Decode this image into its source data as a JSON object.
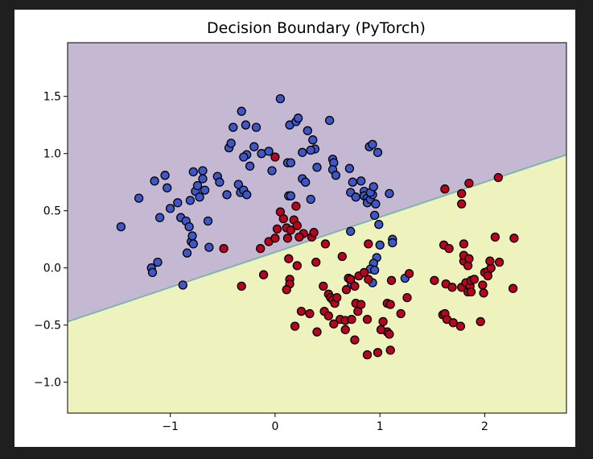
{
  "chart_data": {
    "type": "scatter",
    "title": "Decision Boundary (PyTorch)",
    "xlabel": "",
    "ylabel": "",
    "xlim": [
      -1.98,
      2.78
    ],
    "ylim": [
      -1.27,
      1.97
    ],
    "x_ticks": [
      -1,
      0,
      1,
      2
    ],
    "x_tick_labels": [
      "−1",
      "0",
      "1",
      "2"
    ],
    "y_ticks": [
      -1.0,
      -0.5,
      0.0,
      0.5,
      1.0,
      1.5
    ],
    "y_tick_labels": [
      "−1.0",
      "−0.5",
      "0.0",
      "0.5",
      "1.0",
      "1.5"
    ],
    "grid": false,
    "decision_boundary": {
      "points": [
        [
          -1.98,
          -0.47
        ],
        [
          2.78,
          0.99
        ]
      ],
      "upper_region_color": "#c5b8d3",
      "lower_region_color": "#eef3bd",
      "line_color": "#7fb7a6"
    },
    "colors": {
      "class_0": "#3f57c6",
      "class_1": "#b5051f",
      "marker_edge": "#000000"
    },
    "series": [
      {
        "class": 0,
        "points": [
          [
            -1.47,
            0.36
          ],
          [
            -1.3,
            0.61
          ],
          [
            -1.15,
            0.76
          ],
          [
            -1.05,
            0.81
          ],
          [
            -1.03,
            0.7
          ],
          [
            -1.0,
            0.52
          ],
          [
            -1.1,
            0.44
          ],
          [
            -1.18,
            0.0
          ],
          [
            -1.17,
            -0.04
          ],
          [
            -1.12,
            0.05
          ],
          [
            -0.93,
            0.57
          ],
          [
            -0.9,
            0.44
          ],
          [
            -0.85,
            0.41
          ],
          [
            -0.82,
            0.36
          ],
          [
            -0.84,
            0.13
          ],
          [
            -0.8,
            0.23
          ],
          [
            -0.78,
            0.21
          ],
          [
            -0.79,
            0.28
          ],
          [
            -0.81,
            0.59
          ],
          [
            -0.76,
            0.67
          ],
          [
            -0.74,
            0.72
          ],
          [
            -0.72,
            0.62
          ],
          [
            -0.69,
            0.85
          ],
          [
            -0.67,
            0.68
          ],
          [
            -0.64,
            0.41
          ],
          [
            -0.63,
            0.18
          ],
          [
            -0.55,
            0.8
          ],
          [
            -0.53,
            0.75
          ],
          [
            -0.46,
            0.64
          ],
          [
            -0.35,
            0.73
          ],
          [
            -0.33,
            0.66
          ],
          [
            -0.3,
            0.68
          ],
          [
            -0.27,
            0.64
          ],
          [
            -0.88,
            -0.15
          ],
          [
            -0.78,
            0.84
          ],
          [
            -0.69,
            0.78
          ],
          [
            -0.44,
            1.05
          ],
          [
            -0.42,
            1.09
          ],
          [
            -0.4,
            1.23
          ],
          [
            -0.32,
            1.37
          ],
          [
            -0.28,
            1.25
          ],
          [
            -0.18,
            1.23
          ],
          [
            -0.27,
            0.99
          ],
          [
            -0.3,
            0.97
          ],
          [
            -0.24,
            0.89
          ],
          [
            -0.2,
            1.06
          ],
          [
            -0.13,
            1.0
          ],
          [
            -0.06,
            1.02
          ],
          [
            -0.03,
            0.85
          ],
          [
            0.05,
            1.48
          ],
          [
            0.12,
            0.92
          ],
          [
            0.15,
            0.92
          ],
          [
            0.14,
            1.25
          ],
          [
            0.2,
            1.28
          ],
          [
            0.22,
            1.31
          ],
          [
            0.31,
            1.2
          ],
          [
            0.36,
            1.12
          ],
          [
            0.38,
            1.04
          ],
          [
            0.34,
            1.03
          ],
          [
            0.26,
            1.01
          ],
          [
            0.4,
            0.88
          ],
          [
            0.52,
            1.29
          ],
          [
            0.55,
            0.95
          ],
          [
            0.56,
            0.92
          ],
          [
            0.55,
            0.86
          ],
          [
            0.58,
            0.81
          ],
          [
            0.71,
            0.87
          ],
          [
            0.74,
            0.75
          ],
          [
            0.72,
            0.66
          ],
          [
            0.77,
            0.62
          ],
          [
            0.82,
            0.76
          ],
          [
            0.85,
            0.67
          ],
          [
            0.85,
            0.63
          ],
          [
            0.88,
            0.61
          ],
          [
            0.88,
            0.57
          ],
          [
            0.91,
            0.6
          ],
          [
            0.93,
            0.64
          ],
          [
            0.91,
            0.66
          ],
          [
            0.94,
            0.71
          ],
          [
            0.96,
            0.56
          ],
          [
            0.95,
            0.46
          ],
          [
            0.99,
            0.38
          ],
          [
            0.9,
            1.06
          ],
          [
            0.93,
            1.08
          ],
          [
            0.98,
            1.01
          ],
          [
            1.09,
            0.65
          ],
          [
            1.12,
            0.25
          ],
          [
            1.12,
            0.22
          ],
          [
            1.0,
            0.2
          ],
          [
            0.97,
            0.09
          ],
          [
            0.94,
            0.04
          ],
          [
            0.91,
            -0.01
          ],
          [
            0.95,
            -0.02
          ],
          [
            0.93,
            -0.13
          ],
          [
            0.73,
            -0.14
          ],
          [
            0.72,
            0.32
          ],
          [
            1.24,
            -0.09
          ],
          [
            0.26,
            0.78
          ],
          [
            0.29,
            0.75
          ],
          [
            0.34,
            0.6
          ],
          [
            0.13,
            0.63
          ],
          [
            0.15,
            0.63
          ]
        ]
      },
      {
        "class": 1,
        "points": [
          [
            -0.49,
            0.17
          ],
          [
            -0.32,
            -0.16
          ],
          [
            -0.11,
            -0.06
          ],
          [
            -0.14,
            0.17
          ],
          [
            -0.06,
            0.23
          ],
          [
            0.0,
            0.26
          ],
          [
            0.02,
            0.34
          ],
          [
            0.05,
            0.49
          ],
          [
            0.08,
            0.43
          ],
          [
            0.11,
            0.35
          ],
          [
            0.12,
            0.26
          ],
          [
            0.15,
            0.33
          ],
          [
            0.18,
            0.42
          ],
          [
            0.21,
            0.37
          ],
          [
            0.2,
            0.54
          ],
          [
            0.27,
            0.3
          ],
          [
            0.35,
            0.27
          ],
          [
            0.37,
            0.31
          ],
          [
            0.0,
            0.97
          ],
          [
            0.23,
            0.27
          ],
          [
            0.13,
            0.08
          ],
          [
            0.21,
            0.02
          ],
          [
            0.14,
            -0.1
          ],
          [
            0.14,
            -0.14
          ],
          [
            0.11,
            -0.19
          ],
          [
            0.39,
            0.05
          ],
          [
            0.46,
            -0.16
          ],
          [
            0.51,
            -0.23
          ],
          [
            0.53,
            -0.26
          ],
          [
            0.55,
            -0.28
          ],
          [
            0.57,
            -0.31
          ],
          [
            0.59,
            -0.26
          ],
          [
            0.48,
            0.21
          ],
          [
            0.64,
            0.1
          ],
          [
            0.7,
            -0.09
          ],
          [
            0.68,
            -0.19
          ],
          [
            0.72,
            -0.1
          ],
          [
            0.76,
            -0.16
          ],
          [
            0.8,
            -0.07
          ],
          [
            0.85,
            -0.04
          ],
          [
            0.89,
            -0.1
          ],
          [
            0.89,
            0.21
          ],
          [
            0.25,
            -0.38
          ],
          [
            0.33,
            -0.4
          ],
          [
            0.19,
            -0.51
          ],
          [
            0.4,
            -0.56
          ],
          [
            0.47,
            -0.38
          ],
          [
            0.51,
            -0.42
          ],
          [
            0.56,
            -0.49
          ],
          [
            0.62,
            -0.45
          ],
          [
            0.67,
            -0.46
          ],
          [
            0.67,
            -0.54
          ],
          [
            0.73,
            -0.45
          ],
          [
            0.79,
            -0.38
          ],
          [
            0.77,
            -0.31
          ],
          [
            0.82,
            -0.32
          ],
          [
            0.76,
            -0.63
          ],
          [
            0.88,
            -0.45
          ],
          [
            0.88,
            -0.76
          ],
          [
            0.98,
            -0.74
          ],
          [
            1.03,
            -0.47
          ],
          [
            1.07,
            -0.31
          ],
          [
            1.1,
            -0.32
          ],
          [
            1.07,
            -0.56
          ],
          [
            1.09,
            -0.58
          ],
          [
            1.1,
            -0.72
          ],
          [
            1.01,
            -0.54
          ],
          [
            1.11,
            -0.11
          ],
          [
            1.2,
            -0.4
          ],
          [
            1.26,
            -0.26
          ],
          [
            1.28,
            -0.05
          ],
          [
            1.52,
            -0.11
          ],
          [
            1.63,
            -0.14
          ],
          [
            1.6,
            -0.41
          ],
          [
            1.62,
            -0.4
          ],
          [
            1.64,
            -0.45
          ],
          [
            1.69,
            -0.17
          ],
          [
            1.7,
            -0.48
          ],
          [
            1.77,
            -0.51
          ],
          [
            1.78,
            -0.17
          ],
          [
            1.82,
            -0.13
          ],
          [
            1.84,
            -0.21
          ],
          [
            1.86,
            -0.16
          ],
          [
            1.87,
            -0.21
          ],
          [
            1.87,
            -0.11
          ],
          [
            1.9,
            -0.1
          ],
          [
            1.61,
            0.2
          ],
          [
            1.66,
            0.17
          ],
          [
            1.8,
            0.06
          ],
          [
            1.8,
            0.11
          ],
          [
            1.84,
            0.02
          ],
          [
            1.85,
            0.08
          ],
          [
            1.8,
            0.21
          ],
          [
            1.98,
            -0.15
          ],
          [
            1.99,
            -0.22
          ],
          [
            1.96,
            -0.47
          ],
          [
            2.0,
            -0.04
          ],
          [
            2.03,
            -0.03
          ],
          [
            2.06,
            0.0
          ],
          [
            2.03,
            -0.07
          ],
          [
            2.05,
            0.06
          ],
          [
            2.14,
            0.05
          ],
          [
            2.1,
            0.27
          ],
          [
            2.28,
            0.26
          ],
          [
            2.27,
            -0.18
          ],
          [
            1.62,
            0.69
          ],
          [
            1.78,
            0.65
          ],
          [
            1.78,
            0.56
          ],
          [
            1.85,
            0.74
          ],
          [
            2.13,
            0.79
          ]
        ]
      }
    ]
  }
}
